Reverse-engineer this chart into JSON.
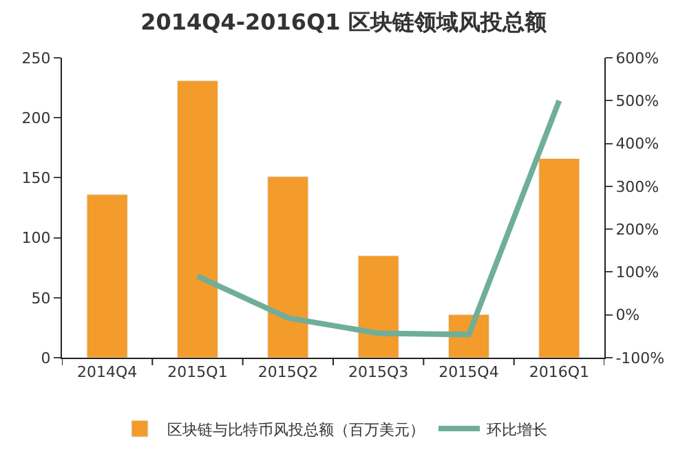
{
  "chart_data": {
    "type": "bar",
    "title": "2014Q4-2016Q1 区块链领域风投总额",
    "categories": [
      "2014Q4",
      "2015Q1",
      "2015Q2",
      "2015Q3",
      "2015Q4",
      "2016Q1"
    ],
    "series": [
      {
        "name": "区块链与比特币风投总额（百万美元）",
        "color": "#f39b2b",
        "values": [
          136,
          231,
          151,
          85,
          36,
          166
        ]
      },
      {
        "name": "环比增长",
        "type": "line",
        "axis": "y2",
        "color": "#6fae9a",
        "values": [
          null,
          90,
          -7,
          -43,
          -46,
          500
        ]
      }
    ],
    "ylim": [
      0,
      250
    ],
    "yticks": [
      0,
      50,
      100,
      150,
      200,
      250
    ],
    "y2lim": [
      -100,
      600
    ],
    "y2ticks": [
      {
        "value": -100,
        "label": "-100%"
      },
      {
        "value": 0,
        "label": "0%"
      },
      {
        "value": 100,
        "label": "100%"
      },
      {
        "value": 200,
        "label": "200%"
      },
      {
        "value": 300,
        "label": "300%"
      },
      {
        "value": 400,
        "label": "400%"
      },
      {
        "value": 500,
        "label": "500%"
      },
      {
        "value": 600,
        "label": "600%"
      }
    ],
    "legend": "bottom",
    "marker": "none"
  }
}
